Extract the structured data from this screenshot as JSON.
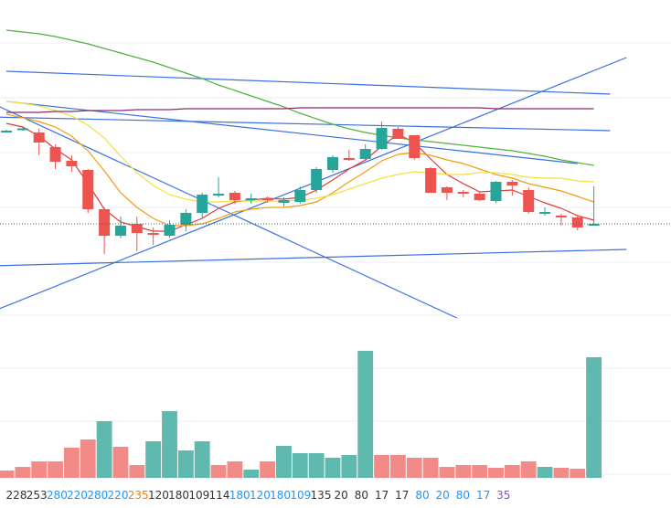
{
  "chart_data": {
    "type": "candlestick",
    "grid": true,
    "colors": {
      "up": "#26a69a",
      "down": "#ef5350",
      "vol_up": "#5fb9ae",
      "vol_down": "#f28b87",
      "grid": "#e9ecf1",
      "ma_fast": "#e53935",
      "ma_mid": "#f39c12",
      "ma_slow": "#f4e041",
      "ma_long": "#52b043",
      "trend": "#3b6fe0",
      "ma_purple": "#8e2a6a",
      "last_price_line": "#3f6a5d",
      "label_blue": "#2196f3",
      "label_orange": "#f57c00",
      "label_purple": "#7e57c2",
      "label_default": "#333333"
    },
    "candles": [
      {
        "o": 0.0,
        "c": 0.0,
        "h": 1.0,
        "l": -1.0
      },
      {
        "o": 1.0,
        "c": 2.5,
        "h": 4.0,
        "l": 0.0
      },
      {
        "o": -2.0,
        "c": -13.0,
        "h": 2.0,
        "l": -27.0
      },
      {
        "o": -18.0,
        "c": -34.0,
        "h": -15.0,
        "l": -42.0
      },
      {
        "o": -33.0,
        "c": -39.0,
        "h": -27.0,
        "l": -45.0
      },
      {
        "o": -43.0,
        "c": -86.0,
        "h": -42.0,
        "l": -90.0
      },
      {
        "o": -86.0,
        "c": -115.0,
        "h": -84.0,
        "l": -135.0
      },
      {
        "o": -115.0,
        "c": -104.0,
        "h": -94.0,
        "l": -118.0
      },
      {
        "o": -102.0,
        "c": -112.0,
        "h": -94.0,
        "l": -132.0
      },
      {
        "o": -112.0,
        "c": -114.0,
        "h": -106.0,
        "l": -125.0
      },
      {
        "o": -115.0,
        "c": -103.0,
        "h": -98.0,
        "l": -117.0
      },
      {
        "o": -103.0,
        "c": -90.0,
        "h": -86.0,
        "l": -110.0
      },
      {
        "o": -90.0,
        "c": -70.0,
        "h": -68.0,
        "l": -96.0
      },
      {
        "o": -70.0,
        "c": -69.0,
        "h": -51.0,
        "l": -73.0
      },
      {
        "o": -68.0,
        "c": -76.0,
        "h": -66.0,
        "l": -80.0
      },
      {
        "o": -76.0,
        "c": -74.0,
        "h": -69.0,
        "l": -80.0
      },
      {
        "o": -74.0,
        "c": -75.0,
        "h": -72.0,
        "l": -79.0
      },
      {
        "o": -79.0,
        "c": -76.0,
        "h": -73.0,
        "l": -83.0
      },
      {
        "o": -78.0,
        "c": -65.0,
        "h": -61.0,
        "l": -80.0
      },
      {
        "o": -65.0,
        "c": -42.0,
        "h": -40.0,
        "l": -68.0
      },
      {
        "o": -43.0,
        "c": -29.0,
        "h": -27.0,
        "l": -46.0
      },
      {
        "o": -30.0,
        "c": -31.0,
        "h": -21.0,
        "l": -33.0
      },
      {
        "o": -31.0,
        "c": -20.0,
        "h": -15.0,
        "l": -33.0
      },
      {
        "o": -20.0,
        "c": 3.0,
        "h": 10.0,
        "l": -21.0
      },
      {
        "o": 2.0,
        "c": -9.0,
        "h": 4.0,
        "l": -9.0
      },
      {
        "o": -5.0,
        "c": -30.0,
        "h": -5.0,
        "l": -32.0
      },
      {
        "o": -41.0,
        "c": -68.0,
        "h": -40.0,
        "l": -68.0
      },
      {
        "o": -62.0,
        "c": -68.0,
        "h": -61.0,
        "l": -76.0
      },
      {
        "o": -67.0,
        "c": -69.0,
        "h": -65.0,
        "l": -73.0
      },
      {
        "o": -69.0,
        "c": -76.0,
        "h": -67.0,
        "l": -77.0
      },
      {
        "o": -77.0,
        "c": -56.0,
        "h": -55.0,
        "l": -79.0
      },
      {
        "o": -56.0,
        "c": -60.0,
        "h": -54.0,
        "l": -71.0
      },
      {
        "o": -65.0,
        "c": -89.0,
        "h": -62.0,
        "l": -91.0
      },
      {
        "o": -89.0,
        "c": -89.0,
        "h": -84.0,
        "l": -93.0
      },
      {
        "o": -93.0,
        "c": -94.0,
        "h": -91.0,
        "l": -104.0
      },
      {
        "o": -95.0,
        "c": -106.0,
        "h": -93.0,
        "l": -109.0
      },
      {
        "o": -104.0,
        "c": -102.0,
        "h": -61.0,
        "l": -104.0
      }
    ],
    "volumes": [
      {
        "v": 8,
        "up": false
      },
      {
        "v": 12,
        "up": false
      },
      {
        "v": 18,
        "up": false
      },
      {
        "v": 18,
        "up": false
      },
      {
        "v": 33,
        "up": false
      },
      {
        "v": 42,
        "up": false
      },
      {
        "v": 62,
        "up": true
      },
      {
        "v": 34,
        "up": false
      },
      {
        "v": 14,
        "up": false
      },
      {
        "v": 40,
        "up": true
      },
      {
        "v": 73,
        "up": true
      },
      {
        "v": 30,
        "up": true
      },
      {
        "v": 40,
        "up": true
      },
      {
        "v": 14,
        "up": false
      },
      {
        "v": 18,
        "up": false
      },
      {
        "v": 9,
        "up": true
      },
      {
        "v": 18,
        "up": false
      },
      {
        "v": 35,
        "up": true
      },
      {
        "v": 27,
        "up": true
      },
      {
        "v": 27,
        "up": true
      },
      {
        "v": 22,
        "up": true
      },
      {
        "v": 25,
        "up": true
      },
      {
        "v": 139,
        "up": true
      },
      {
        "v": 25,
        "up": false
      },
      {
        "v": 25,
        "up": false
      },
      {
        "v": 22,
        "up": false
      },
      {
        "v": 22,
        "up": false
      },
      {
        "v": 12,
        "up": false
      },
      {
        "v": 14,
        "up": false
      },
      {
        "v": 14,
        "up": false
      },
      {
        "v": 11,
        "up": false
      },
      {
        "v": 14,
        "up": false
      },
      {
        "v": 18,
        "up": false
      },
      {
        "v": 12,
        "up": true
      },
      {
        "v": 11,
        "up": false
      },
      {
        "v": 10,
        "up": false
      },
      {
        "v": 132,
        "up": true
      }
    ],
    "ma_lines": {
      "ma_fast": [
        8,
        4,
        -6,
        -20,
        -32,
        -58,
        -86,
        -100,
        -105,
        -110,
        -110,
        -103,
        -96,
        -85,
        -78,
        -76,
        -74,
        -75,
        -73,
        -65,
        -54,
        -42,
        -32,
        -17,
        -4,
        -13,
        -31,
        -48,
        -58,
        -67,
        -66,
        -65,
        -72,
        -79,
        -85,
        -93,
        -98
      ],
      "ma_mid": [
        18,
        14,
        10,
        4,
        -6,
        -22,
        -44,
        -68,
        -84,
        -96,
        -104,
        -104,
        -102,
        -96,
        -89,
        -86,
        -84,
        -84,
        -82,
        -78,
        -68,
        -56,
        -45,
        -33,
        -26,
        -24,
        -27,
        -32,
        -36,
        -42,
        -48,
        -52,
        -58,
        -62,
        -66,
        -72,
        -78
      ],
      "ma_slow": [
        32,
        30,
        27,
        22,
        16,
        6,
        -8,
        -28,
        -46,
        -60,
        -70,
        -75,
        -78,
        -78,
        -77,
        -77,
        -77,
        -77,
        -76,
        -74,
        -70,
        -64,
        -58,
        -52,
        -48,
        -45,
        -46,
        -48,
        -48,
        -46,
        -46,
        -48,
        -51,
        -52,
        -52,
        -55,
        -56
      ],
      "ma_long": [
        110,
        108,
        106,
        103,
        99,
        95,
        90,
        85,
        80,
        75,
        69,
        63,
        57,
        50,
        44,
        38,
        32,
        26,
        19,
        13,
        7,
        2,
        -2,
        -5,
        -8,
        -10,
        -12,
        -14,
        -16,
        -18,
        -20,
        -22,
        -25,
        -28,
        -32,
        -35,
        -38
      ],
      "ma_purple": [
        20,
        20,
        20,
        21,
        21,
        22,
        22,
        22,
        23,
        23,
        23,
        24,
        24,
        24,
        24,
        24,
        24,
        24,
        25,
        25,
        25,
        25,
        25,
        25,
        25,
        25,
        25,
        25,
        25,
        25,
        24,
        24,
        24,
        24,
        24,
        24,
        24
      ]
    },
    "trend_lines": [
      {
        "x1": 0,
        "y1": 32,
        "x2": 35,
        "y2": -36
      },
      {
        "x1": 0,
        "y1": 65,
        "x2": 37,
        "y2": 40
      },
      {
        "x1": -1,
        "y1": 15,
        "x2": 37,
        "y2": 0
      },
      {
        "x1": -1,
        "y1": -199,
        "x2": 38,
        "y2": 80
      },
      {
        "x1": -1,
        "y1": 31,
        "x2": 27.6,
        "y2": -205
      },
      {
        "x1": -1,
        "y1": -148,
        "x2": 38,
        "y2": -130
      }
    ],
    "x_tick_labels": [
      {
        "text": "228",
        "color_key": "label_default"
      },
      {
        "text": "253",
        "color_key": "label_default"
      },
      {
        "text": "280",
        "color_key": "label_blue"
      },
      {
        "text": "220",
        "color_key": "label_blue"
      },
      {
        "text": "280",
        "color_key": "label_blue"
      },
      {
        "text": "220",
        "color_key": "label_blue"
      },
      {
        "text": "235",
        "color_key": "label_orange"
      },
      {
        "text": "120",
        "color_key": "label_default"
      },
      {
        "text": "180",
        "color_key": "label_default"
      },
      {
        "text": "109",
        "color_key": "label_default"
      },
      {
        "text": "114",
        "color_key": "label_default"
      },
      {
        "text": "180",
        "color_key": "label_blue"
      },
      {
        "text": "120",
        "color_key": "label_blue"
      },
      {
        "text": "180",
        "color_key": "label_blue"
      },
      {
        "text": "109",
        "color_key": "label_blue"
      },
      {
        "text": "135",
        "color_key": "label_default"
      },
      {
        "text": "20",
        "color_key": "label_default"
      },
      {
        "text": "80",
        "color_key": "label_default"
      },
      {
        "text": "17",
        "color_key": "label_default"
      },
      {
        "text": "17",
        "color_key": "label_default"
      },
      {
        "text": "80",
        "color_key": "label_blue"
      },
      {
        "text": "20",
        "color_key": "label_blue"
      },
      {
        "text": "80",
        "color_key": "label_blue"
      },
      {
        "text": "17",
        "color_key": "label_blue"
      },
      {
        "text": "35",
        "color_key": "label_purple"
      }
    ],
    "last_price": -102.0
  }
}
